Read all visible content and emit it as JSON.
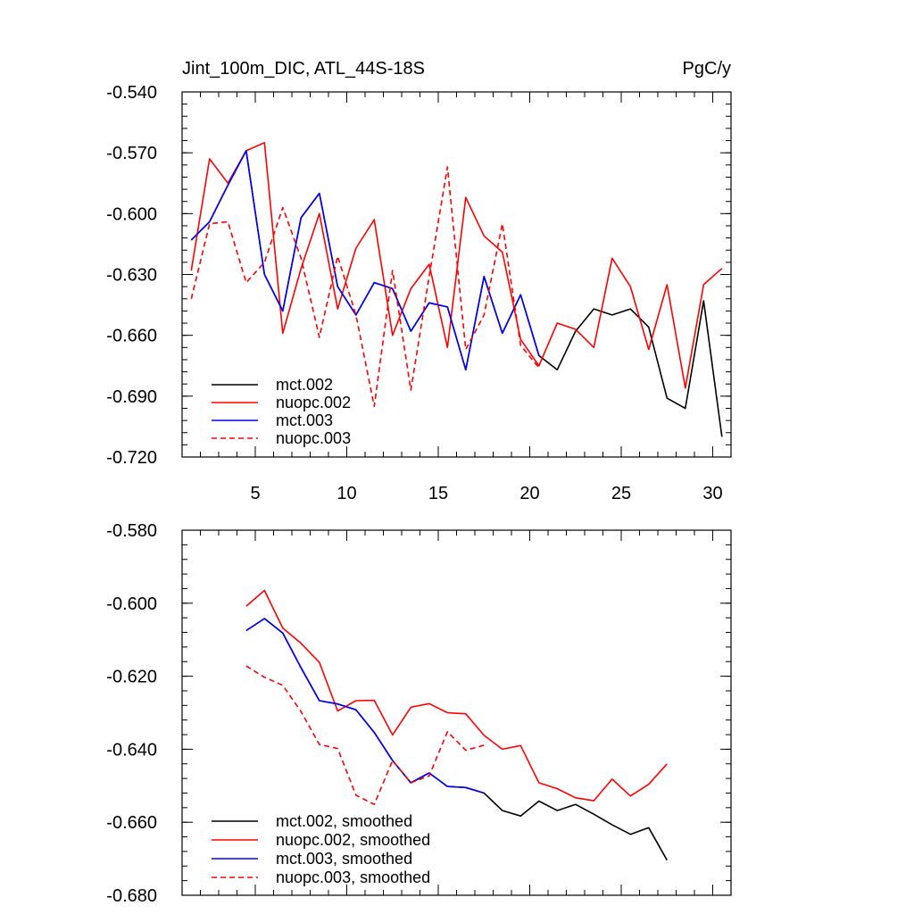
{
  "colors": {
    "black": "#000000",
    "red": "#ff0000",
    "blue": "#0000ff"
  },
  "chart_data": [
    {
      "type": "line",
      "title_left": "Jint_100m_DIC, ATL_44S-18S",
      "title_right": "PgC/y",
      "xlim": [
        1,
        31
      ],
      "ylim": [
        -0.72,
        -0.54
      ],
      "x_ticks": [
        5,
        10,
        15,
        20,
        25,
        30
      ],
      "x_tick_labels": [
        "5",
        "10",
        "15",
        "20",
        "25",
        "30"
      ],
      "y_ticks": [
        -0.54,
        -0.57,
        -0.6,
        -0.63,
        -0.66,
        -0.69,
        -0.72
      ],
      "y_tick_labels": [
        "-0.540",
        "-0.570",
        "-0.600",
        "-0.630",
        "-0.660",
        "-0.690",
        "-0.720"
      ],
      "legend_position": "bottom-left",
      "series": [
        {
          "name": "mct.002",
          "color": "black",
          "dash": false,
          "x": [
            1.5,
            2.5,
            3.5,
            4.5,
            5.5,
            6.5,
            7.5,
            8.5,
            9.5,
            10.5,
            11.5,
            12.5,
            13.5,
            14.5,
            15.5,
            16.5,
            17.5,
            18.5,
            19.5,
            20.5,
            21.5,
            22.5,
            23.5,
            24.5,
            25.5,
            26.5,
            27.5,
            28.5,
            29.5,
            30.5
          ],
          "values": [
            -0.613,
            -0.604,
            -0.586,
            -0.569,
            -0.63,
            -0.648,
            -0.602,
            -0.59,
            -0.636,
            -0.65,
            -0.634,
            -0.637,
            -0.658,
            -0.644,
            -0.646,
            -0.677,
            -0.631,
            -0.659,
            -0.64,
            -0.67,
            -0.677,
            -0.658,
            -0.647,
            -0.65,
            -0.647,
            -0.656,
            -0.691,
            -0.696,
            -0.643,
            -0.71
          ]
        },
        {
          "name": "nuopc.002",
          "color": "red",
          "dash": false,
          "x": [
            1.5,
            2.5,
            3.5,
            4.5,
            5.5,
            6.5,
            7.5,
            8.5,
            9.5,
            10.5,
            11.5,
            12.5,
            13.5,
            14.5,
            15.5,
            16.5,
            17.5,
            18.5,
            19.5,
            20.5,
            21.5,
            22.5,
            23.5,
            24.5,
            25.5,
            26.5,
            27.5,
            28.5,
            29.5,
            30.5
          ],
          "values": [
            -0.628,
            -0.573,
            -0.585,
            -0.569,
            -0.565,
            -0.659,
            -0.627,
            -0.6,
            -0.647,
            -0.617,
            -0.603,
            -0.66,
            -0.637,
            -0.625,
            -0.666,
            -0.592,
            -0.611,
            -0.619,
            -0.662,
            -0.675,
            -0.654,
            -0.657,
            -0.666,
            -0.622,
            -0.636,
            -0.667,
            -0.635,
            -0.686,
            -0.635,
            -0.627
          ]
        },
        {
          "name": "mct.003",
          "color": "blue",
          "dash": false,
          "x": [
            1.5,
            2.5,
            3.5,
            4.5,
            5.5,
            6.5,
            7.5,
            8.5,
            9.5,
            10.5,
            11.5,
            12.5,
            13.5,
            14.5,
            15.5,
            16.5,
            17.5,
            18.5,
            19.5,
            20.5
          ],
          "values": [
            -0.613,
            -0.604,
            -0.586,
            -0.569,
            -0.63,
            -0.648,
            -0.602,
            -0.59,
            -0.636,
            -0.65,
            -0.634,
            -0.637,
            -0.658,
            -0.644,
            -0.646,
            -0.677,
            -0.631,
            -0.659,
            -0.64,
            -0.67
          ]
        },
        {
          "name": "nuopc.003",
          "color": "red",
          "dash": true,
          "x": [
            1.5,
            2.5,
            3.5,
            4.5,
            5.5,
            6.5,
            7.5,
            8.5,
            9.5,
            10.5,
            11.5,
            12.5,
            13.5,
            14.5,
            15.5,
            16.5,
            17.5,
            18.5,
            19.5,
            20.5
          ],
          "values": [
            -0.642,
            -0.605,
            -0.604,
            -0.634,
            -0.624,
            -0.597,
            -0.622,
            -0.661,
            -0.621,
            -0.65,
            -0.695,
            -0.628,
            -0.687,
            -0.631,
            -0.577,
            -0.667,
            -0.65,
            -0.605,
            -0.665,
            -0.676
          ]
        }
      ]
    },
    {
      "type": "line",
      "xlim": [
        1,
        31
      ],
      "ylim": [
        -0.68,
        -0.58
      ],
      "x_ticks": [
        5,
        10,
        15,
        20,
        25,
        30
      ],
      "y_ticks": [
        -0.58,
        -0.6,
        -0.62,
        -0.64,
        -0.66,
        -0.68
      ],
      "y_tick_labels": [
        "-0.580",
        "-0.600",
        "-0.620",
        "-0.640",
        "-0.660",
        "-0.680"
      ],
      "legend_position": "bottom-left",
      "series": [
        {
          "name": "mct.002, smoothed",
          "color": "black",
          "dash": false,
          "x": [
            4.5,
            5.5,
            6.5,
            7.5,
            8.5,
            9.5,
            10.5,
            11.5,
            12.5,
            13.5,
            14.5,
            15.5,
            16.5,
            17.5,
            18.5,
            19.5,
            20.5,
            21.5,
            22.5,
            23.5,
            24.5,
            25.5,
            26.5,
            27.5
          ],
          "values": [
            -0.6075,
            -0.6042,
            -0.6082,
            -0.6177,
            -0.6267,
            -0.6276,
            -0.6292,
            -0.6354,
            -0.6431,
            -0.6492,
            -0.6465,
            -0.6502,
            -0.6505,
            -0.652,
            -0.6568,
            -0.6583,
            -0.6542,
            -0.6568,
            -0.6551,
            -0.6578,
            -0.6607,
            -0.6633,
            -0.6615,
            -0.6704
          ]
        },
        {
          "name": "nuopc.002, smoothed",
          "color": "red",
          "dash": false,
          "x": [
            4.5,
            5.5,
            6.5,
            7.5,
            8.5,
            9.5,
            10.5,
            11.5,
            12.5,
            13.5,
            14.5,
            15.5,
            16.5,
            17.5,
            18.5,
            19.5,
            20.5,
            21.5,
            22.5,
            23.5,
            24.5,
            25.5,
            26.5,
            27.5
          ],
          "values": [
            -0.6008,
            -0.5965,
            -0.6068,
            -0.611,
            -0.6162,
            -0.6295,
            -0.6267,
            -0.6266,
            -0.6361,
            -0.6285,
            -0.6275,
            -0.63,
            -0.6303,
            -0.6362,
            -0.64,
            -0.639,
            -0.6492,
            -0.6508,
            -0.6533,
            -0.6541,
            -0.6482,
            -0.6528,
            -0.6496,
            -0.644
          ]
        },
        {
          "name": "mct.003, smoothed",
          "color": "blue",
          "dash": false,
          "x": [
            4.5,
            5.5,
            6.5,
            7.5,
            8.5,
            9.5,
            10.5,
            11.5,
            12.5,
            13.5,
            14.5,
            15.5,
            16.5,
            17.5
          ],
          "values": [
            -0.6075,
            -0.6042,
            -0.6082,
            -0.6177,
            -0.6267,
            -0.6276,
            -0.6292,
            -0.6354,
            -0.6431,
            -0.6492,
            -0.6465,
            -0.6502,
            -0.6505,
            -0.652
          ]
        },
        {
          "name": "nuopc.003, smoothed",
          "color": "red",
          "dash": true,
          "x": [
            4.5,
            5.5,
            6.5,
            7.5,
            8.5,
            9.5,
            10.5,
            11.5,
            12.5,
            13.5,
            14.5,
            15.5,
            16.5,
            17.5
          ],
          "values": [
            -0.6172,
            -0.6203,
            -0.6225,
            -0.6297,
            -0.6387,
            -0.6398,
            -0.6526,
            -0.6551,
            -0.6431,
            -0.6492,
            -0.6473,
            -0.6352,
            -0.6403,
            -0.6389
          ]
        }
      ]
    }
  ]
}
